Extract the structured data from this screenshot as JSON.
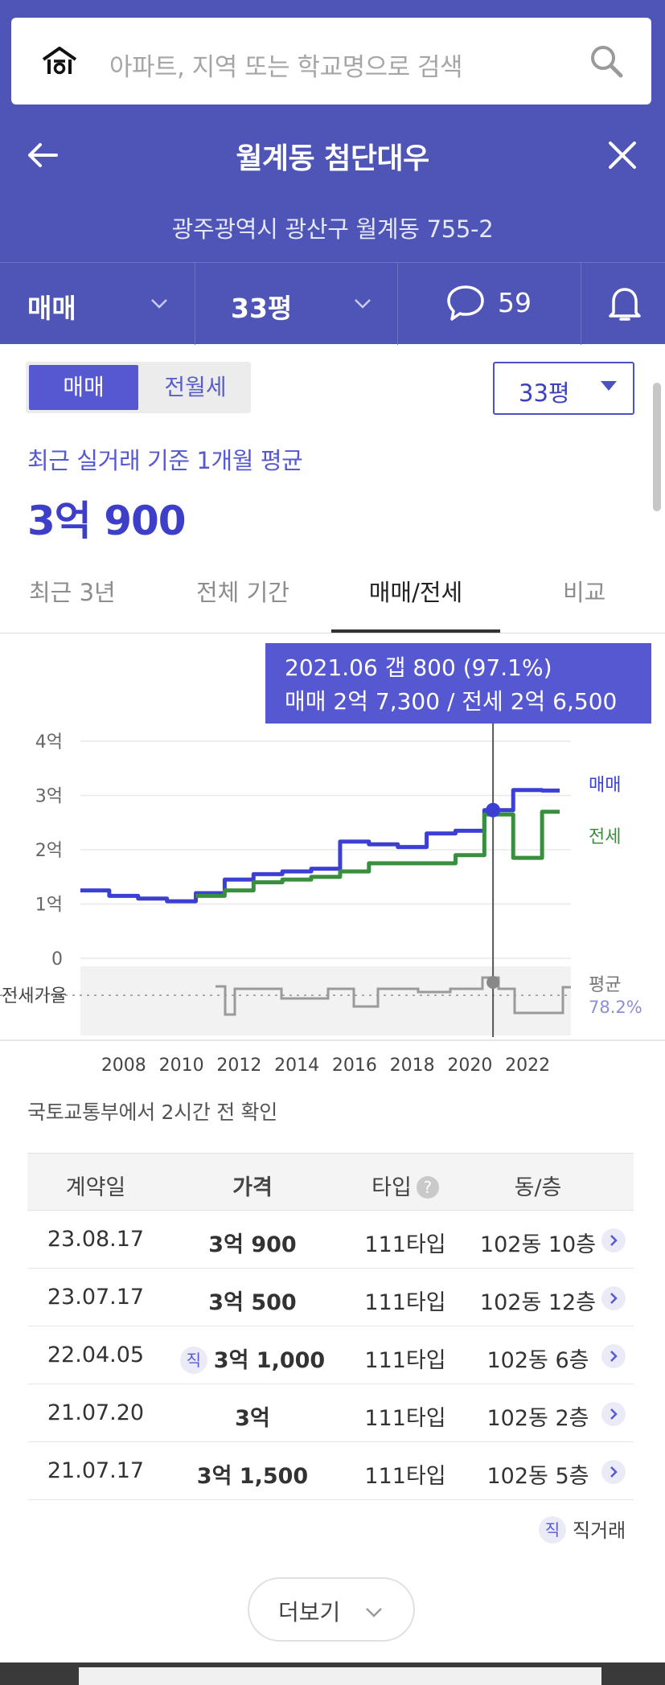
{
  "search": {
    "placeholder": "아파트, 지역 또는 학교명으로 검색"
  },
  "header": {
    "title": "월계동 첨단대우",
    "address": "광주광역시 광산구 월계동 755-2"
  },
  "filters": {
    "deal_type": "매매",
    "size": "33평",
    "comment_count": "59"
  },
  "summary": {
    "toggle_sale": "매매",
    "toggle_rent": "전월세",
    "size_select": "33평",
    "avg_label": "최근 실거래 기준 1개월 평균",
    "avg_price": "3억 900"
  },
  "tabs": [
    "최근 3년",
    "전체 기간",
    "매매/전세",
    "비교"
  ],
  "tooltip": {
    "line1": "2021.06  갭 800 (97.1%)",
    "line2": "매매 2억 7,300 / 전세 2억 6,500"
  },
  "chart_data": {
    "type": "line",
    "title": "",
    "x": [
      "2007",
      "2008",
      "2009",
      "2010",
      "2011",
      "2012",
      "2013",
      "2014",
      "2015",
      "2016",
      "2017",
      "2018",
      "2019",
      "2020",
      "2021",
      "2022",
      "2023"
    ],
    "x_ticks": [
      "2008",
      "2010",
      "2012",
      "2014",
      "2016",
      "2018",
      "2020",
      "2022"
    ],
    "y_ticks": [
      "0",
      "1억",
      "2억",
      "3억",
      "4억"
    ],
    "ylim": [
      0,
      4
    ],
    "series": [
      {
        "name": "매매",
        "color": "#3c3fd4",
        "values": [
          1.25,
          1.15,
          1.1,
          1.05,
          1.2,
          1.45,
          1.55,
          1.6,
          1.65,
          2.15,
          2.1,
          2.05,
          2.3,
          2.35,
          2.73,
          3.1,
          3.09
        ]
      },
      {
        "name": "전세",
        "color": "#3a8f3e",
        "values": [
          null,
          null,
          null,
          null,
          1.15,
          1.25,
          1.4,
          1.45,
          1.5,
          1.6,
          1.75,
          1.75,
          1.75,
          1.9,
          2.65,
          1.85,
          2.7
        ]
      }
    ],
    "ratio_label": "전세가율",
    "ratio_avg_label": "평균",
    "ratio_avg_value": "78.2%",
    "ratio_colors": {
      "line": "#9a9a9a",
      "band": "#f2f2f2"
    }
  },
  "source_text": "국토교통부에서 2시간 전 확인",
  "table": {
    "headers": {
      "date": "계약일",
      "price": "가격",
      "type": "타입",
      "unit": "동/층"
    },
    "rows": [
      {
        "date": "23.08.17",
        "price": "3억 900",
        "type": "111타입",
        "unit": "102동 10층",
        "direct": false
      },
      {
        "date": "23.07.17",
        "price": "3억 500",
        "type": "111타입",
        "unit": "102동 12층",
        "direct": false
      },
      {
        "date": "22.04.05",
        "price": "3억 1,000",
        "type": "111타입",
        "unit": "102동 6층",
        "direct": true
      },
      {
        "date": "21.07.20",
        "price": "3억",
        "type": "111타입",
        "unit": "102동 2층",
        "direct": false
      },
      {
        "date": "21.07.17",
        "price": "3억 1,500",
        "type": "111타입",
        "unit": "102동 5층",
        "direct": false
      }
    ]
  },
  "direct_badge": "직",
  "direct_legend": "직거래",
  "help_mark": "?",
  "more_label": "더보기"
}
